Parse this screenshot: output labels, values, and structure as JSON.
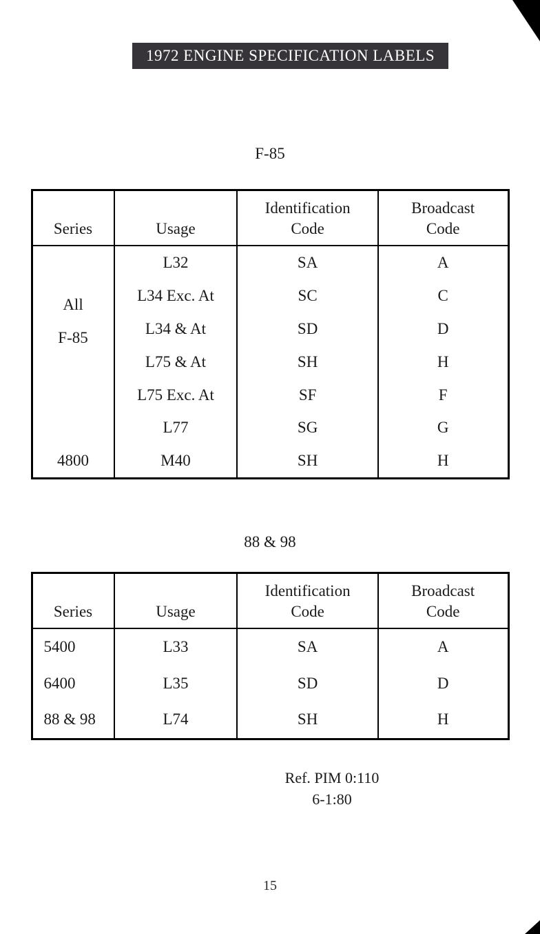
{
  "title": "1972 ENGINE SPECIFICATION LABELS",
  "page_number": "15",
  "table1": {
    "caption": "F-85",
    "headers": {
      "series": "Series",
      "usage": "Usage",
      "ident": "Identification\nCode",
      "broadcast": "Broadcast\nCode"
    },
    "series_block": {
      "line1": "All",
      "line2": "F-85"
    },
    "rows_main": [
      {
        "usage": "L32",
        "ident": "SA",
        "broadcast": "A"
      },
      {
        "usage": "L34 Exc. At",
        "ident": "SC",
        "broadcast": "C"
      },
      {
        "usage": "L34 & At",
        "ident": "SD",
        "broadcast": "D"
      },
      {
        "usage": "L75 & At",
        "ident": "SH",
        "broadcast": "H"
      },
      {
        "usage": "L75 Exc. At",
        "ident": "SF",
        "broadcast": "F"
      },
      {
        "usage": "L77",
        "ident": "SG",
        "broadcast": "G"
      }
    ],
    "row_4800": {
      "series": "4800",
      "usage": "M40",
      "ident": "SH",
      "broadcast": "H"
    }
  },
  "table2": {
    "caption": "88 & 98",
    "headers": {
      "series": "Series",
      "usage": "Usage",
      "ident": "Identification\nCode",
      "broadcast": "Broadcast\nCode"
    },
    "rows": [
      {
        "series": "5400",
        "usage": "L33",
        "ident": "SA",
        "broadcast": "A"
      },
      {
        "series": "6400",
        "usage": "L35",
        "ident": "SD",
        "broadcast": "D"
      },
      {
        "series": "88 & 98",
        "usage": "L74",
        "ident": "SH",
        "broadcast": "H"
      }
    ]
  },
  "footer": {
    "ref1": "Ref.  PIM 0:110",
    "ref2": "6-1:80"
  },
  "colors": {
    "background": "#ffffff",
    "title_bg": "#363439",
    "title_text": "#ffffff",
    "text": "#1a1a1a",
    "border": "#000000"
  }
}
